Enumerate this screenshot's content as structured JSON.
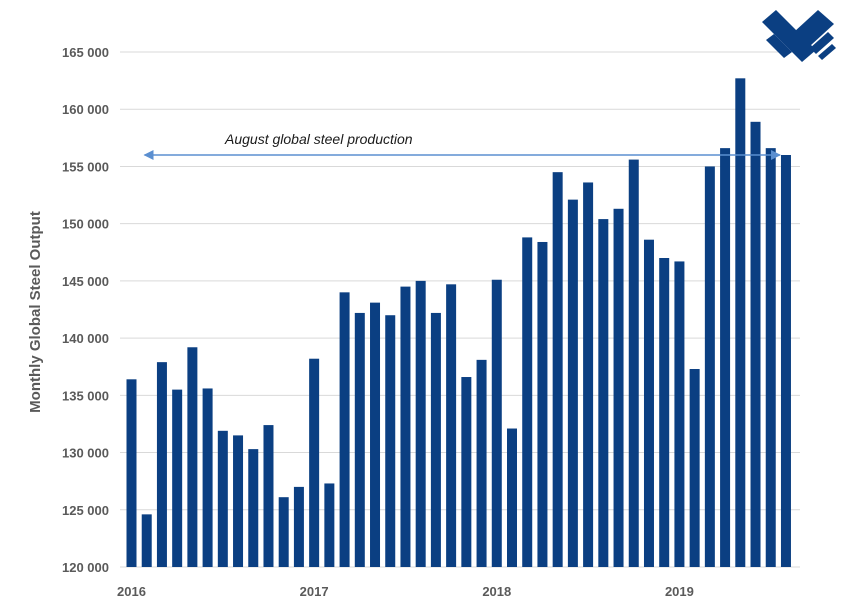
{
  "chart_data": {
    "type": "bar",
    "title": "",
    "ylabel": "Monthly Global Steel Output",
    "xlabel": "",
    "ylim": [
      120000,
      165000
    ],
    "y_ticks": [
      120000,
      125000,
      130000,
      135000,
      140000,
      145000,
      150000,
      155000,
      160000,
      165000
    ],
    "y_tick_labels": [
      "120 000",
      "125 000",
      "130 000",
      "135 000",
      "140 000",
      "145 000",
      "150 000",
      "155 000",
      "160 000",
      "165 000"
    ],
    "x_tick_labels": [
      {
        "label": "2016",
        "index": 0
      },
      {
        "label": "2017",
        "index": 12
      },
      {
        "label": "2018",
        "index": 24
      },
      {
        "label": "2019",
        "index": 36
      }
    ],
    "categories": [
      "2016-01",
      "2016-02",
      "2016-03",
      "2016-04",
      "2016-05",
      "2016-06",
      "2016-07",
      "2016-08",
      "2016-09",
      "2016-10",
      "2016-11",
      "2016-12",
      "2017-01",
      "2017-02",
      "2017-03",
      "2017-04",
      "2017-05",
      "2017-06",
      "2017-07",
      "2017-08",
      "2017-09",
      "2017-10",
      "2017-11",
      "2017-12",
      "2018-01",
      "2018-02",
      "2018-03",
      "2018-04",
      "2018-05",
      "2018-06",
      "2018-07",
      "2018-08",
      "2018-09",
      "2018-10",
      "2018-11",
      "2018-12",
      "2019-01",
      "2019-02",
      "2019-03",
      "2019-04",
      "2019-05",
      "2019-06",
      "2019-07",
      "2019-08"
    ],
    "values": [
      136400,
      124600,
      137900,
      135500,
      139200,
      135600,
      131900,
      131500,
      130300,
      132400,
      126100,
      127000,
      138200,
      127300,
      144000,
      142200,
      143100,
      142000,
      144500,
      145000,
      142200,
      144700,
      136600,
      138100,
      145100,
      132100,
      148800,
      148400,
      154500,
      152100,
      153600,
      150400,
      151300,
      155600,
      148600,
      147000,
      146700,
      137300,
      155000,
      156600,
      162700,
      158900,
      156600,
      156000
    ],
    "bar_color": "#0b3f82",
    "grid": true,
    "annotation": {
      "text": "August global steel production",
      "arrow_start_index": 0,
      "arrow_end_index": 43,
      "arrow_value": 156000,
      "arrow_color": "#5b8fd0"
    }
  },
  "logo": {
    "name": "company-logo",
    "color": "#0b3f82"
  }
}
